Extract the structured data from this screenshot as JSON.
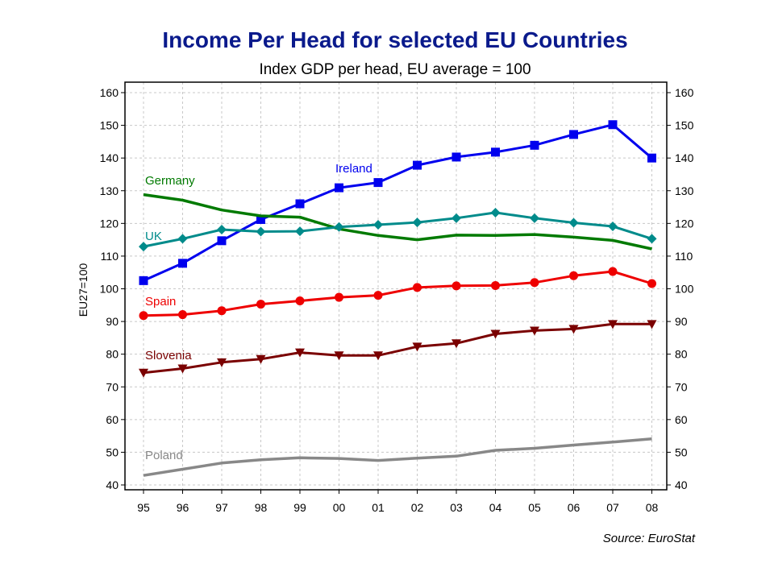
{
  "chart_data": {
    "type": "line",
    "title": "Income Per Head for selected EU Countries",
    "subtitle": "Index GDP per head, EU average = 100",
    "ylabel": "EU27=100",
    "xlabel": "",
    "source": "Source: EuroStat",
    "x": [
      "95",
      "96",
      "97",
      "98",
      "99",
      "00",
      "01",
      "02",
      "03",
      "04",
      "05",
      "06",
      "07",
      "08"
    ],
    "yticks": [
      40,
      50,
      60,
      70,
      80,
      90,
      100,
      110,
      120,
      130,
      140,
      150,
      160
    ],
    "ylim": [
      40,
      160
    ],
    "grid": true,
    "legend": "none",
    "series": [
      {
        "name": "Ireland",
        "color": "#0000ee",
        "marker": "square",
        "values": [
          102.5,
          107.8,
          114.7,
          121.2,
          126.0,
          130.9,
          132.5,
          137.8,
          140.3,
          141.8,
          143.9,
          147.2,
          150.2,
          140.0
        ]
      },
      {
        "name": "Germany",
        "color": "#007a00",
        "marker": "none",
        "values": [
          128.8,
          127.1,
          124.1,
          122.3,
          121.9,
          118.3,
          116.3,
          115.0,
          116.4,
          116.3,
          116.6,
          115.8,
          114.8,
          112.2
        ]
      },
      {
        "name": "UK",
        "color": "#008b8b",
        "marker": "diamond",
        "values": [
          112.9,
          115.3,
          118.1,
          117.5,
          117.6,
          118.9,
          119.6,
          120.3,
          121.6,
          123.3,
          121.6,
          120.2,
          119.1,
          115.3
        ]
      },
      {
        "name": "Spain",
        "color": "#ee0000",
        "marker": "circle",
        "values": [
          91.8,
          92.1,
          93.3,
          95.3,
          96.3,
          97.4,
          98.0,
          100.4,
          100.9,
          101.0,
          101.9,
          104.0,
          105.3,
          101.6
        ]
      },
      {
        "name": "Slovenia",
        "color": "#7a0000",
        "marker": "triangle-down",
        "values": [
          74.3,
          75.6,
          77.5,
          78.5,
          80.5,
          79.6,
          79.6,
          82.3,
          83.3,
          86.2,
          87.2,
          87.7,
          89.2,
          89.2
        ]
      },
      {
        "name": "Poland",
        "color": "#888888",
        "marker": "none",
        "values": [
          42.9,
          44.8,
          46.7,
          47.7,
          48.3,
          48.1,
          47.5,
          48.2,
          48.8,
          50.6,
          51.2,
          52.2,
          53.1,
          54.1
        ]
      }
    ]
  }
}
